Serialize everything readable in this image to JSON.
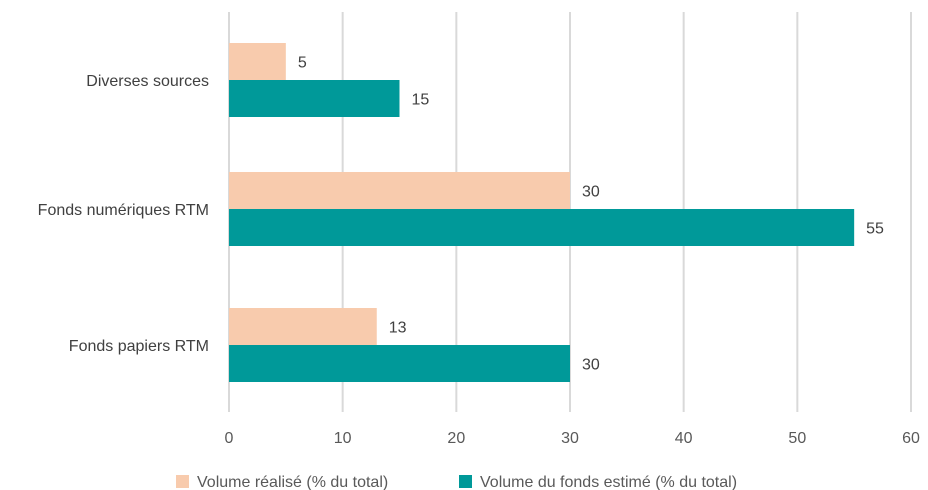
{
  "chart_data": {
    "type": "bar",
    "orientation": "horizontal",
    "categories": [
      "Diverses sources",
      "Fonds numériques RTM",
      "Fonds papiers RTM"
    ],
    "series": [
      {
        "name": "Volume réalisé (% du total)",
        "color": "#F8CBAD",
        "values": [
          5,
          30,
          13
        ]
      },
      {
        "name": "Volume du fonds estimé (% du total)",
        "color": "#009999",
        "values": [
          15,
          55,
          30
        ]
      }
    ],
    "xlim": [
      0,
      60
    ],
    "xticks": [
      0,
      10,
      20,
      30,
      40,
      50,
      60
    ],
    "grid": true,
    "legend_position": "bottom"
  }
}
